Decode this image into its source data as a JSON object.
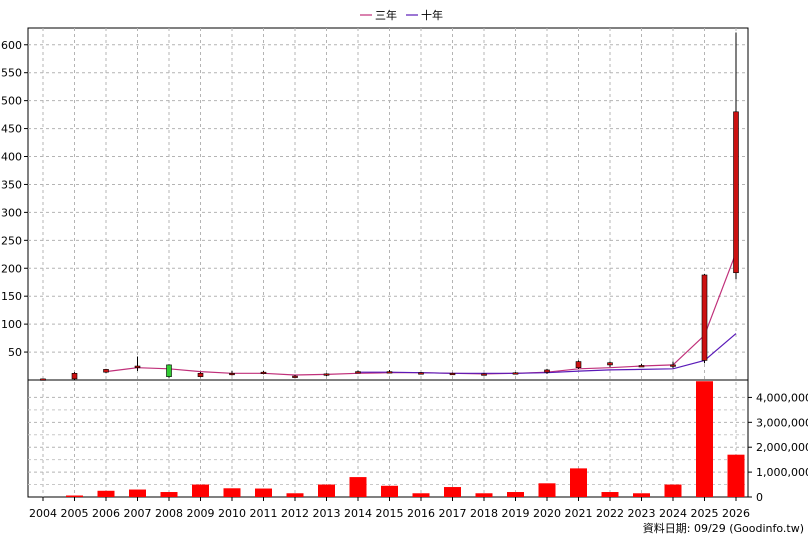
{
  "legend": {
    "items": [
      {
        "label": "三年",
        "color": "#c0307a"
      },
      {
        "label": "十年",
        "color": "#5a1ab8"
      }
    ]
  },
  "footer": {
    "note": "資料日期: 09/29 (Goodinfo.tw)"
  },
  "chart_data": {
    "type": "candlestick+line+bar",
    "years": [
      "2004",
      "2005",
      "2006",
      "2007",
      "2008",
      "2009",
      "2010",
      "2011",
      "2012",
      "2013",
      "2014",
      "2015",
      "2016",
      "2017",
      "2018",
      "2019",
      "2020",
      "2021",
      "2022",
      "2023",
      "2024",
      "2025",
      "2026"
    ],
    "price_axis": {
      "ticks": [
        50,
        100,
        150,
        200,
        250,
        300,
        350,
        400,
        450,
        500,
        550,
        600
      ],
      "ylim": [
        0,
        630
      ]
    },
    "volume_axis": {
      "ticks": [
        0,
        1000000,
        2000000,
        3000000,
        4000000
      ],
      "tick_labels": [
        "0",
        "1,000,000",
        "2,000,000",
        "3,000,000",
        "4,000,000"
      ],
      "ylim": [
        0,
        4700000
      ]
    },
    "candles": [
      {
        "open": 2,
        "high": 2,
        "low": 1,
        "close": 2
      },
      {
        "open": 2,
        "high": 14,
        "low": 1,
        "close": 12
      },
      {
        "open": 14,
        "high": 20,
        "low": 12,
        "close": 19
      },
      {
        "open": 22,
        "high": 42,
        "low": 16,
        "close": 25
      },
      {
        "open": 27,
        "high": 28,
        "low": 4,
        "close": 6
      },
      {
        "open": 6,
        "high": 14,
        "low": 5,
        "close": 12
      },
      {
        "open": 12,
        "high": 16,
        "low": 8,
        "close": 12
      },
      {
        "open": 12,
        "high": 16,
        "low": 10,
        "close": 14
      },
      {
        "open": 7,
        "high": 9,
        "low": 5,
        "close": 7
      },
      {
        "open": 9,
        "high": 12,
        "low": 7,
        "close": 11
      },
      {
        "open": 13,
        "high": 17,
        "low": 12,
        "close": 15
      },
      {
        "open": 14,
        "high": 18,
        "low": 12,
        "close": 15
      },
      {
        "open": 13,
        "high": 14,
        "low": 12,
        "close": 13
      },
      {
        "open": 12,
        "high": 13,
        "low": 11,
        "close": 12
      },
      {
        "open": 11,
        "high": 12,
        "low": 10,
        "close": 11
      },
      {
        "open": 11,
        "high": 14,
        "low": 10,
        "close": 13
      },
      {
        "open": 14,
        "high": 20,
        "low": 11,
        "close": 18
      },
      {
        "open": 22,
        "high": 35,
        "low": 20,
        "close": 33
      },
      {
        "open": 27,
        "high": 33,
        "low": 23,
        "close": 31
      },
      {
        "open": 26,
        "high": 29,
        "low": 24,
        "close": 26
      },
      {
        "open": 25,
        "high": 33,
        "low": 21,
        "close": 27
      },
      {
        "open": 35,
        "high": 190,
        "low": 30,
        "close": 188
      },
      {
        "open": 192,
        "high": 622,
        "low": 180,
        "close": 480
      }
    ],
    "series": [
      {
        "name": "三年",
        "values": [
          null,
          null,
          15,
          22,
          20,
          15,
          12,
          12,
          9,
          10,
          12,
          13,
          13,
          12,
          11,
          12,
          14,
          20,
          22,
          25,
          27,
          80,
          228
        ]
      },
      {
        "name": "十年",
        "values": [
          null,
          null,
          null,
          null,
          null,
          null,
          null,
          null,
          null,
          null,
          14,
          14,
          13,
          12,
          12,
          12,
          13,
          16,
          18,
          19,
          20,
          35,
          83
        ]
      }
    ],
    "volume": [
      0,
      60000,
      250000,
      300000,
      200000,
      500000,
      350000,
      340000,
      150000,
      500000,
      800000,
      450000,
      150000,
      400000,
      150000,
      200000,
      550000,
      1150000,
      200000,
      150000,
      500000,
      4650000,
      1700000
    ],
    "grid": true
  }
}
